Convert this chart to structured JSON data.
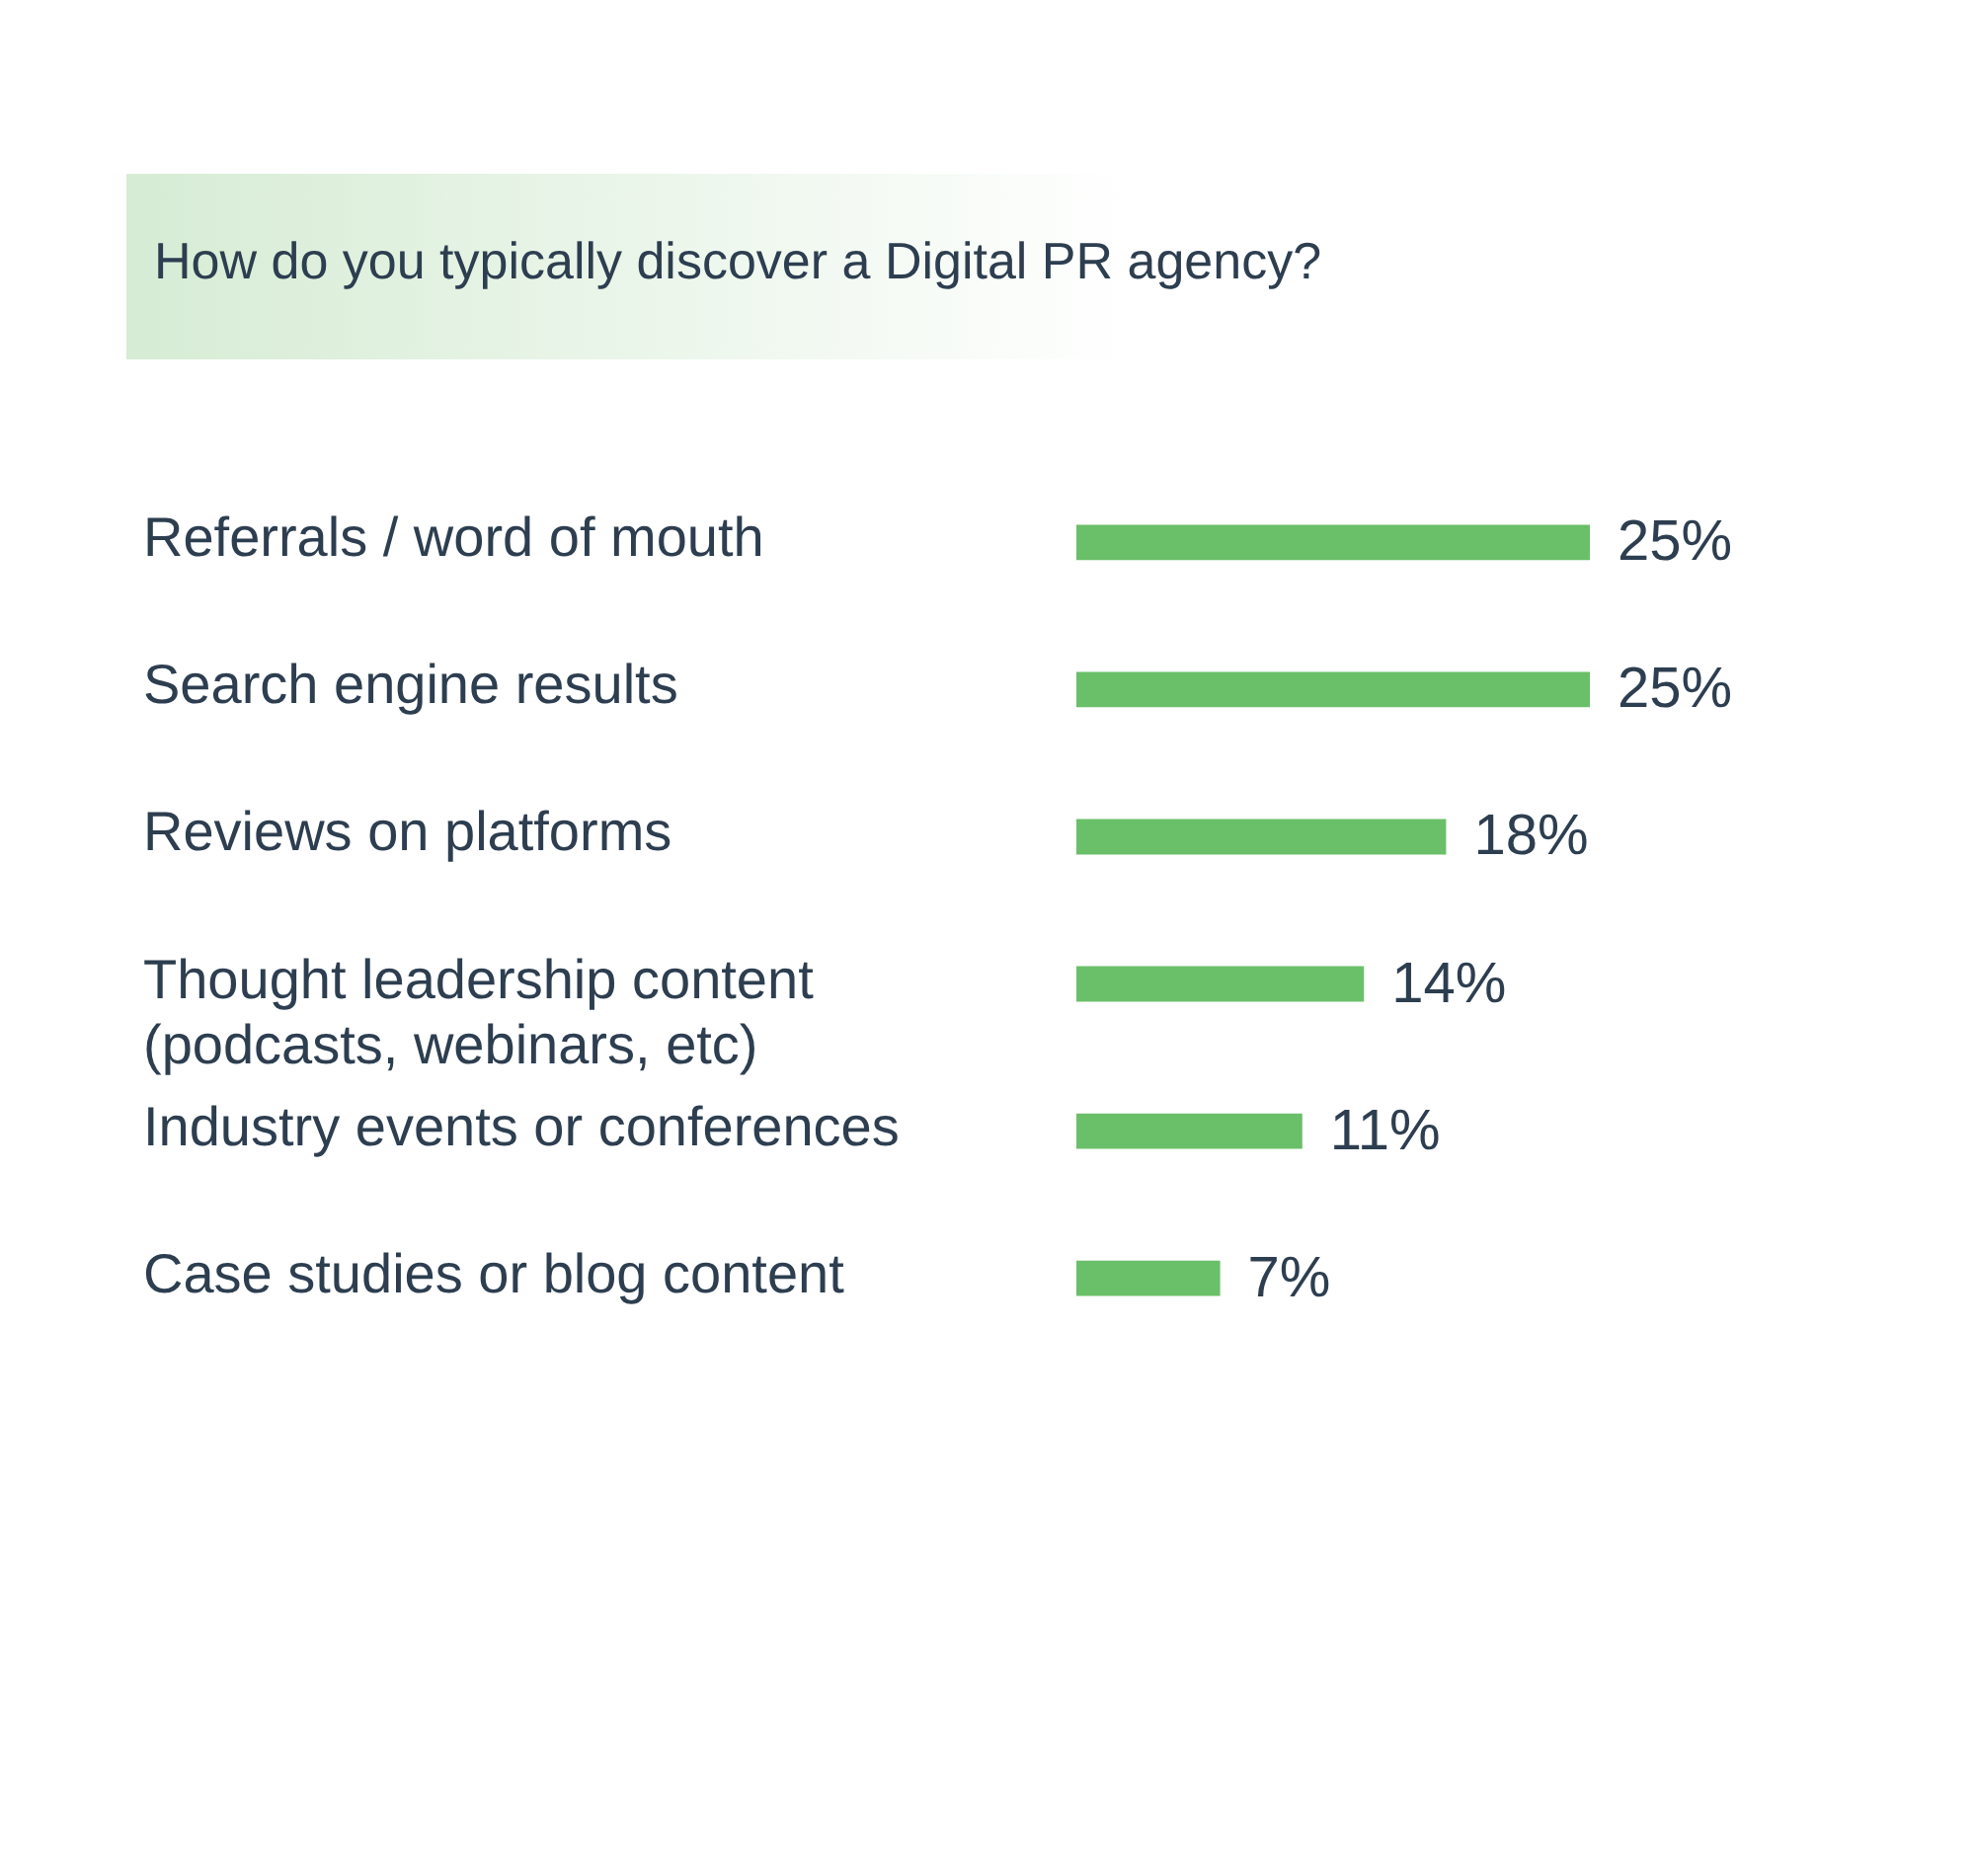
{
  "chart_data": {
    "type": "bar",
    "orientation": "horizontal",
    "title": "How do you typically discover a Digital PR agency?",
    "categories": [
      "Referrals / word of mouth",
      "Search engine results",
      "Reviews on platforms",
      "Thought leadership content\n(podcasts, webinars, etc)",
      "Industry events or conferences",
      "Case studies or blog content"
    ],
    "values": [
      25,
      25,
      18,
      14,
      11,
      7
    ],
    "value_labels": [
      "25%",
      "25%",
      "18%",
      "14%",
      "11%",
      "7%"
    ],
    "color": "#6abf69"
  }
}
